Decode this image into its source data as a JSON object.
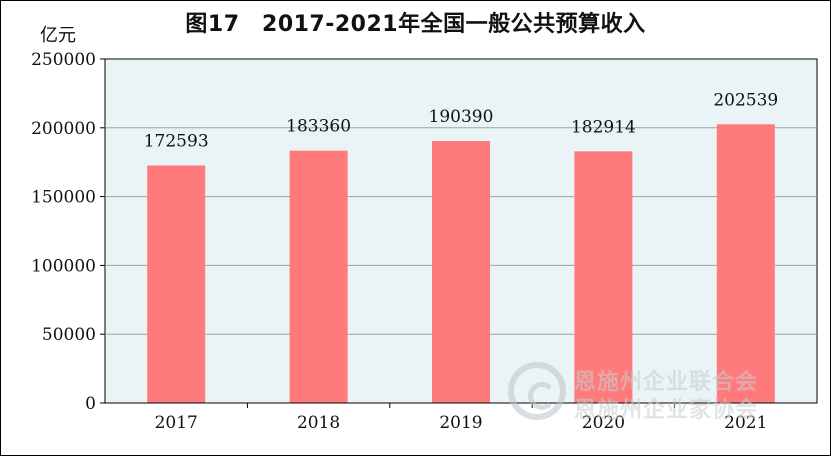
{
  "chart_data": {
    "type": "bar",
    "title": "图17　2017-2021年全国一般公共预算收入",
    "ylabel": "亿元",
    "categories": [
      "2017",
      "2018",
      "2019",
      "2020",
      "2021"
    ],
    "values": [
      172593,
      183360,
      190390,
      182914,
      202539
    ],
    "ylim": [
      0,
      250000
    ],
    "yticks": [
      0,
      50000,
      100000,
      150000,
      200000,
      250000
    ],
    "grid": true,
    "legend": "none"
  },
  "colors": {
    "bar": "#ff7b7b",
    "plot_background": "#eaf3f5",
    "grid": "#9aa3a8",
    "axis": "#000000"
  },
  "watermark": {
    "line1": "恩施州企业联合会",
    "line2": "恩施州企业家协会",
    "icon": "logo-ring-icon"
  }
}
